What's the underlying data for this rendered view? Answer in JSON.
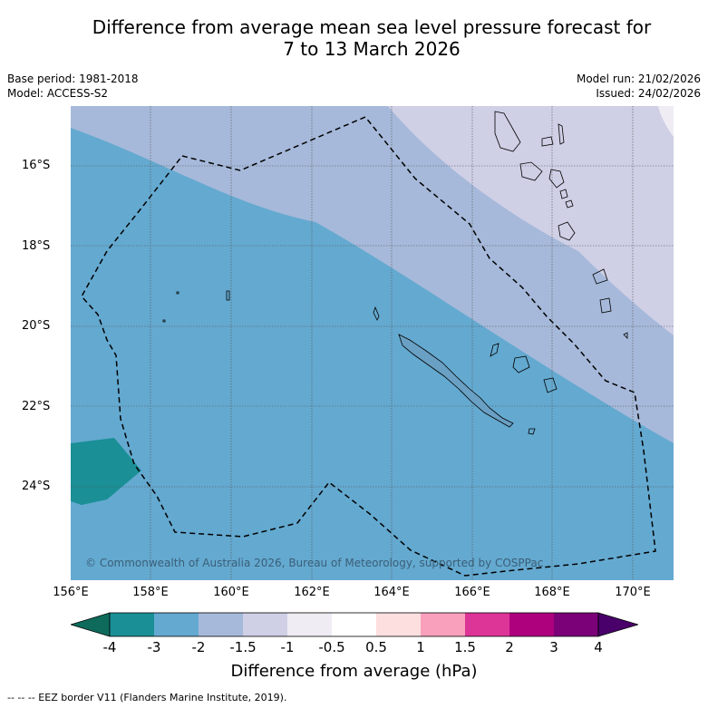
{
  "title": {
    "line1": "Difference from average mean sea level pressure forecast for",
    "line2": "7 to 13 March 2026"
  },
  "meta": {
    "base_period": "Base period: 1981-2018",
    "model": "Model: ACCESS-S2",
    "model_run": "Model run: 21/02/2026",
    "issued": "Issued: 24/02/2026"
  },
  "axes": {
    "lat_labels": [
      "16°S",
      "18°S",
      "20°S",
      "22°S",
      "24°S"
    ],
    "lon_labels": [
      "156°E",
      "158°E",
      "160°E",
      "162°E",
      "164°E",
      "166°E",
      "168°E",
      "170°E"
    ]
  },
  "copyright": "© Commonwealth of Australia 2026, Bureau of Meteorology, supported by COSPPac",
  "colorbar": {
    "ticks": [
      "-4",
      "-3",
      "-2",
      "-1.5",
      "-1",
      "-0.5",
      "0.5",
      "1",
      "1.5",
      "2",
      "3",
      "4"
    ],
    "colors": [
      "#1a8f96",
      "#64a9d0",
      "#a6b9da",
      "#cfcfe6",
      "#efedf3",
      "#ffffff",
      "#fedfdf",
      "#f8a0bc",
      "#dd3497",
      "#ae017e",
      "#7a0177"
    ],
    "under_color": "#0e6b5c",
    "over_color": "#49006a",
    "label": "Difference from average (hPa)"
  },
  "footer": "--  --  -- EEZ border V11 (Flanders Marine Institute, 2019)."
}
